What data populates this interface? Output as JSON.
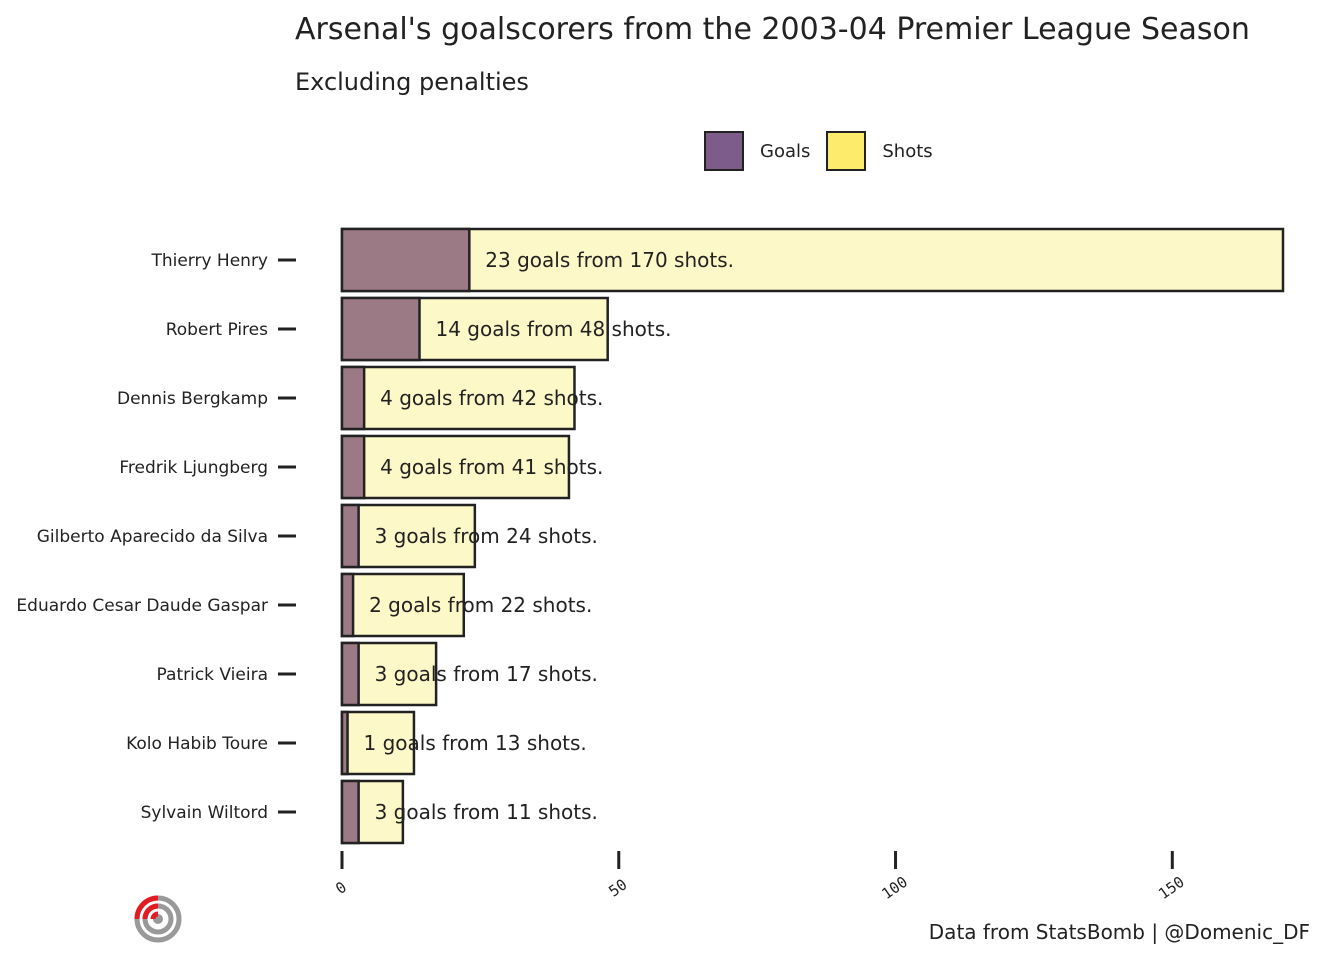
{
  "title": "Arsenal's goalscorers from the 2003-04 Premier League Season",
  "subtitle": "Excluding penalties",
  "footer": "Data from StatsBomb |  @Domenic_DF",
  "legend": [
    {
      "label": "Goals",
      "color": "#7e5c8a"
    },
    {
      "label": "Shots",
      "color": "#fdec6b"
    }
  ],
  "chart_data": {
    "type": "bar",
    "orientation": "horizontal",
    "categories": [
      "Thierry Henry",
      "Robert Pires",
      "Dennis Bergkamp",
      "Fredrik Ljungberg",
      "Gilberto Aparecido da Silva",
      "Eduardo Cesar Daude Gaspar",
      "Patrick Vieira",
      "Kolo Habib Toure",
      "Sylvain Wiltord"
    ],
    "series": [
      {
        "name": "Goals",
        "values": [
          23,
          14,
          4,
          4,
          3,
          2,
          3,
          1,
          3
        ],
        "color": "#7e5c8a"
      },
      {
        "name": "Shots",
        "values": [
          170,
          48,
          42,
          41,
          24,
          22,
          17,
          13,
          11
        ],
        "color": "#fdec6b"
      }
    ],
    "annotations": [
      "23 goals from 170 shots.",
      "14 goals from 48 shots.",
      "4 goals from 42 shots.",
      "4 goals from 41 shots.",
      "3 goals from 24 shots.",
      "2 goals from 22 shots.",
      "3 goals from 17 shots.",
      "1 goals from 13 shots.",
      "3 goals from 11 shots."
    ],
    "xticks": [
      0,
      50,
      100,
      150
    ],
    "xlim": [
      0,
      170
    ],
    "grid": false,
    "legend_position": "top"
  }
}
